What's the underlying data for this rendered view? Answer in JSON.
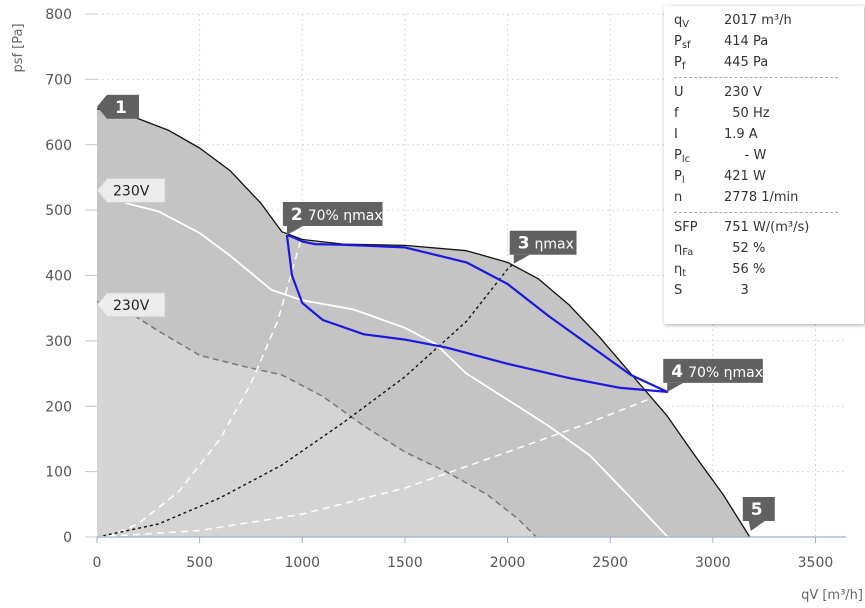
{
  "chart_data": {
    "type": "line",
    "xlabel": "qV [m³/h]",
    "ylabel": "psf [Pa]",
    "xlim": [
      0,
      3600
    ],
    "ylim": [
      0,
      800
    ],
    "x_ticks": [
      "0",
      "500",
      "1000",
      "1500",
      "2000",
      "2500",
      "3000",
      "3500"
    ],
    "y_ticks": [
      "0",
      "100",
      "200",
      "300",
      "400",
      "500",
      "600",
      "700",
      "800"
    ],
    "grid": true,
    "colors": {
      "outer_area": "#c4c4c4",
      "inner_area": "#d4d4d4",
      "outer_curve": "#111111",
      "working_range": "#1a1adc",
      "marker_bg": "#616161"
    },
    "series": [
      {
        "name": "",
        "style": "black-solid",
        "x": [
          0,
          100,
          200,
          350,
          500,
          650,
          800,
          900,
          1000,
          1200,
          1500,
          1800,
          2000,
          2150,
          2300,
          2450,
          2600,
          2778,
          2900,
          3050,
          3180
        ],
        "y": [
          655,
          648,
          640,
          622,
          595,
          560,
          510,
          467,
          455,
          448,
          446,
          438,
          420,
          395,
          355,
          305,
          250,
          185,
          130,
          65,
          0
        ]
      },
      {
        "name": "",
        "style": "blue-working-range",
        "x": [
          925,
          950,
          1000,
          1100,
          1300,
          1500,
          1700,
          2000,
          2300,
          2550,
          2778,
          2600,
          2200,
          2000,
          1800,
          1500,
          1200,
          1060,
          1000,
          960,
          925
        ],
        "y": [
          462,
          400,
          358,
          332,
          310,
          302,
          290,
          265,
          243,
          228,
          222,
          248,
          338,
          387,
          420,
          443,
          447,
          448,
          452,
          458,
          462
        ]
      },
      {
        "name": "",
        "style": "white-solid",
        "x": [
          0,
          150,
          300,
          500,
          650,
          850,
          1000,
          1250,
          1500,
          1650,
          1800,
          2000,
          2200,
          2400,
          2600,
          2780
        ],
        "y": [
          530,
          510,
          498,
          465,
          430,
          378,
          362,
          348,
          320,
          295,
          250,
          210,
          170,
          125,
          60,
          0
        ]
      },
      {
        "name": "",
        "style": "grey-dashed",
        "x": [
          0,
          150,
          300,
          500,
          700,
          900,
          1100,
          1300,
          1500,
          1700,
          1900,
          2050,
          2140
        ],
        "y": [
          360,
          345,
          315,
          278,
          262,
          248,
          215,
          170,
          130,
          100,
          65,
          28,
          0
        ]
      },
      {
        "name": "",
        "style": "white-dashed",
        "x": [
          50,
          200,
          400,
          600,
          750,
          880,
          980,
          1000
        ],
        "y": [
          0,
          20,
          70,
          150,
          235,
          330,
          440,
          462
        ]
      },
      {
        "name": "",
        "style": "black-dotted",
        "x": [
          0,
          300,
          600,
          900,
          1200,
          1500,
          1800,
          2000,
          2030
        ],
        "y": [
          0,
          20,
          60,
          110,
          175,
          245,
          330,
          410,
          418
        ]
      },
      {
        "name": "",
        "style": "white-dashed",
        "x": [
          0,
          500,
          1000,
          1500,
          2000,
          2400,
          2778
        ],
        "y": [
          0,
          10,
          35,
          75,
          130,
          175,
          222
        ]
      }
    ],
    "markers": [
      {
        "num": "1",
        "text": "",
        "x": 0,
        "y": 655
      },
      {
        "num": "2",
        "text": "70% ηmax",
        "x": 925,
        "y": 462
      },
      {
        "num": "3",
        "text": "ηmax",
        "x": 2030,
        "y": 418
      },
      {
        "num": "4",
        "text": "70% ηmax",
        "x": 2778,
        "y": 222
      },
      {
        "num": "5",
        "text": "",
        "x": 3180,
        "y": 0
      }
    ],
    "voltage_labels": [
      {
        "text": "230V",
        "x": 0,
        "y": 530
      },
      {
        "text": "230V",
        "x": 0,
        "y": 355
      }
    ]
  },
  "info": {
    "groups": [
      [
        {
          "sym": "q",
          "sub": "V",
          "value": "2017 m³/h"
        },
        {
          "sym": "P",
          "sub": "sf",
          "value": "414 Pa"
        },
        {
          "sym": "P",
          "sub": "f",
          "value": "445 Pa"
        }
      ],
      [
        {
          "sym": "U",
          "sub": "",
          "value": "230 V"
        },
        {
          "sym": "f",
          "sub": "",
          "value": "  50 Hz"
        },
        {
          "sym": "I",
          "sub": "",
          "value": "1.9 A"
        },
        {
          "sym": "P",
          "sub": "lc",
          "value": "     - W"
        },
        {
          "sym": "P",
          "sub": "l",
          "value": "421 W"
        },
        {
          "sym": "n",
          "sub": "",
          "value": "2778 1/min"
        }
      ],
      [
        {
          "sym": "SFP",
          "sub": "",
          "value": "751 W/(m³/s)"
        },
        {
          "sym": "η",
          "sub": "Fa",
          "value": "  52 %"
        },
        {
          "sym": "η",
          "sub": "t",
          "value": "  56 %"
        },
        {
          "sym": "S",
          "sub": "",
          "value": "    3"
        }
      ]
    ]
  }
}
